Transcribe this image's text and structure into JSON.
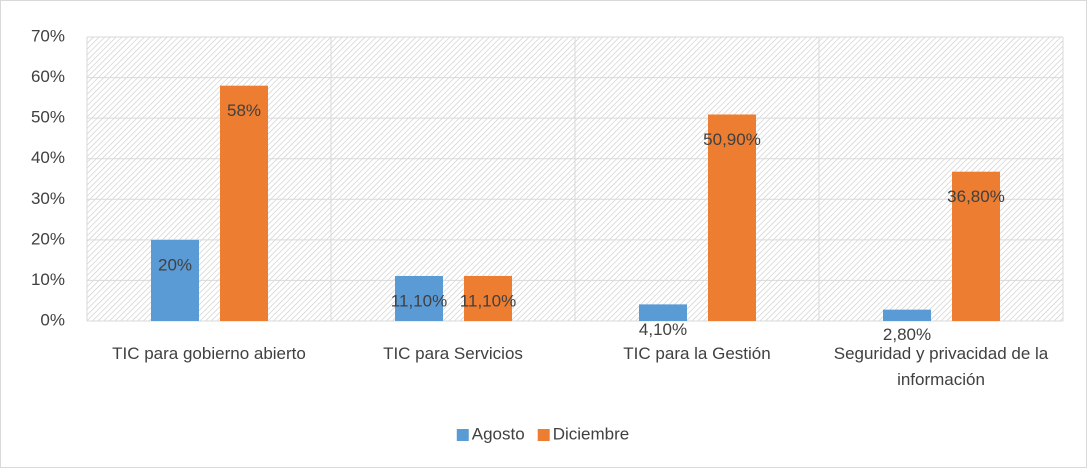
{
  "chart_data": {
    "type": "bar",
    "categories": [
      "TIC para gobierno abierto",
      "TIC para Servicios",
      "TIC para la Gestión",
      "Seguridad y privacidad de la información"
    ],
    "series": [
      {
        "name": "Agosto",
        "color": "#5b9bd5",
        "values": [
          20,
          11.1,
          4.1,
          2.8
        ],
        "value_labels": [
          "20%",
          "11,10%",
          "4,10%",
          "2,80%"
        ]
      },
      {
        "name": "Diciembre",
        "color": "#ed7d31",
        "values": [
          58,
          11.1,
          50.9,
          36.8
        ],
        "value_labels": [
          "58%",
          "11,10%",
          "50,90%",
          "36,80%"
        ]
      }
    ],
    "ylim": [
      0,
      70
    ],
    "yticks": [
      {
        "value": 0,
        "label": "0%"
      },
      {
        "value": 10,
        "label": "10%"
      },
      {
        "value": 20,
        "label": "20%"
      },
      {
        "value": 30,
        "label": "30%"
      },
      {
        "value": 40,
        "label": "40%"
      },
      {
        "value": 50,
        "label": "50%"
      },
      {
        "value": 60,
        "label": "60%"
      },
      {
        "value": 70,
        "label": "70%"
      }
    ],
    "grid": true,
    "legend": "bottom"
  }
}
